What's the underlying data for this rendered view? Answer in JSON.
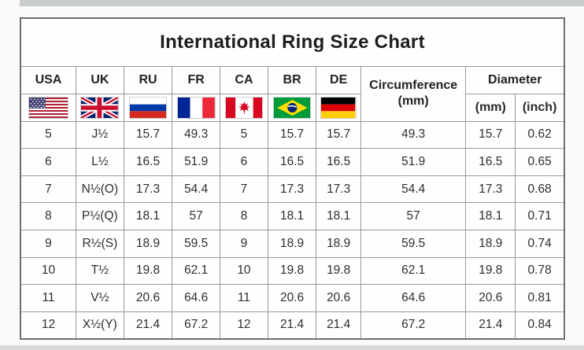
{
  "title": "International Ring Size Chart",
  "table": {
    "columns": [
      {
        "key": "usa",
        "label": "USA",
        "flag": "usa-flag-icon"
      },
      {
        "key": "uk",
        "label": "UK",
        "flag": "uk-flag-icon"
      },
      {
        "key": "ru",
        "label": "RU",
        "flag": "russia-flag-icon"
      },
      {
        "key": "fr",
        "label": "FR",
        "flag": "france-flag-icon"
      },
      {
        "key": "ca",
        "label": "CA",
        "flag": "canada-flag-icon"
      },
      {
        "key": "br",
        "label": "BR",
        "flag": "brazil-flag-icon"
      },
      {
        "key": "de",
        "label": "DE",
        "flag": "germany-flag-icon"
      }
    ],
    "circumference": {
      "line1": "Circumference",
      "line2": "(mm)"
    },
    "diameter": {
      "label": "Diameter",
      "mm": "(mm)",
      "inch": "(inch)"
    },
    "rows": [
      [
        "5",
        "J½",
        "15.7",
        "49.3",
        "5",
        "15.7",
        "15.7",
        "49.3",
        "15.7",
        "0.62"
      ],
      [
        "6",
        "L½",
        "16.5",
        "51.9",
        "6",
        "16.5",
        "16.5",
        "51.9",
        "16.5",
        "0.65"
      ],
      [
        "7",
        "N½(O)",
        "17.3",
        "54.4",
        "7",
        "17.3",
        "17.3",
        "54.4",
        "17.3",
        "0.68"
      ],
      [
        "8",
        "P½(Q)",
        "18.1",
        "57",
        "8",
        "18.1",
        "18.1",
        "57",
        "18.1",
        "0.71"
      ],
      [
        "9",
        "R½(S)",
        "18.9",
        "59.5",
        "9",
        "18.9",
        "18.9",
        "59.5",
        "18.9",
        "0.74"
      ],
      [
        "10",
        "T½",
        "19.8",
        "62.1",
        "10",
        "19.8",
        "19.8",
        "62.1",
        "19.8",
        "0.78"
      ],
      [
        "11",
        "V½",
        "20.6",
        "64.6",
        "11",
        "20.6",
        "20.6",
        "64.6",
        "20.6",
        "0.81"
      ],
      [
        "12",
        "X½(Y)",
        "21.4",
        "67.2",
        "12",
        "21.4",
        "21.4",
        "67.2",
        "21.4",
        "0.84"
      ]
    ]
  },
  "colors": {
    "table_border": "#6f6f6f",
    "grid_line": "#9a9a9a",
    "text": "#2b2b2b",
    "background": "#fbfaf8"
  },
  "chart_data": {
    "type": "table",
    "title": "International Ring Size Chart",
    "columns": [
      "USA",
      "UK",
      "RU",
      "FR",
      "CA",
      "BR",
      "DE",
      "Circumference (mm)",
      "Diameter (mm)",
      "Diameter (inch)"
    ],
    "rows": [
      [
        "5",
        "J½",
        "15.7",
        "49.3",
        "5",
        "15.7",
        "15.7",
        "49.3",
        "15.7",
        "0.62"
      ],
      [
        "6",
        "L½",
        "16.5",
        "51.9",
        "6",
        "16.5",
        "16.5",
        "51.9",
        "16.5",
        "0.65"
      ],
      [
        "7",
        "N½(O)",
        "17.3",
        "54.4",
        "7",
        "17.3",
        "17.3",
        "54.4",
        "17.3",
        "0.68"
      ],
      [
        "8",
        "P½(Q)",
        "18.1",
        "57",
        "8",
        "18.1",
        "18.1",
        "57",
        "18.1",
        "0.71"
      ],
      [
        "9",
        "R½(S)",
        "18.9",
        "59.5",
        "9",
        "18.9",
        "18.9",
        "59.5",
        "18.9",
        "0.74"
      ],
      [
        "10",
        "T½",
        "19.8",
        "62.1",
        "10",
        "19.8",
        "19.8",
        "62.1",
        "19.8",
        "0.78"
      ],
      [
        "11",
        "V½",
        "20.6",
        "64.6",
        "11",
        "20.6",
        "20.6",
        "64.6",
        "20.6",
        "0.81"
      ],
      [
        "12",
        "X½(Y)",
        "21.4",
        "67.2",
        "12",
        "21.4",
        "21.4",
        "67.2",
        "21.4",
        "0.84"
      ]
    ]
  }
}
